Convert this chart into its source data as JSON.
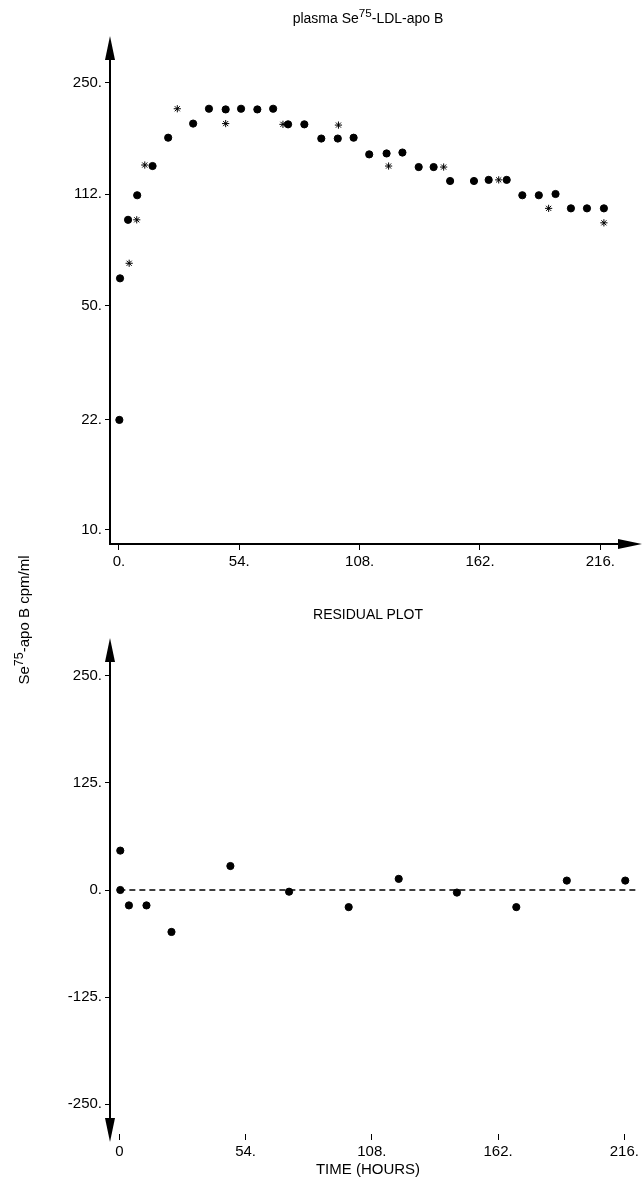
{
  "chart_data": [
    {
      "type": "scatter",
      "title": "plasma Se$^{75}$-LDL-apo B",
      "ylabel": "Se$^{75}$-apo B cpm/ml",
      "log": "y",
      "grid": false,
      "legend": false,
      "xlim": [
        -4,
        232
      ],
      "xticks": [
        {
          "value": 0,
          "label": "0."
        },
        {
          "value": 54,
          "label": "54."
        },
        {
          "value": 108,
          "label": "108."
        },
        {
          "value": 162,
          "label": "162."
        },
        {
          "value": 216,
          "label": "216."
        }
      ],
      "ylim": [
        9,
        330
      ],
      "yticks": [
        {
          "value": 10,
          "label": "10."
        },
        {
          "value": 22,
          "label": "22."
        },
        {
          "value": 50,
          "label": "50."
        },
        {
          "value": 112,
          "label": "112."
        },
        {
          "value": 250,
          "label": "250."
        }
      ],
      "series": [
        {
          "color": "#000000",
          "marker": "circle",
          "x": [
            0.2,
            0.5,
            4.1,
            8.2,
            15.1,
            22.1,
            33.3,
            40.4,
            47.9,
            54.8,
            62.1,
            69.2,
            75.9,
            83.2,
            90.8,
            98.2,
            105.3,
            112.3,
            120.1,
            127.2,
            134.5,
            141.2,
            148.6,
            159.3,
            165.9,
            174,
            181,
            188.4,
            195.9,
            202.8,
            210,
            217.6
          ],
          "values": [
            22,
            61,
            93,
            111,
            137,
            168,
            186,
            207,
            206,
            207,
            206,
            207,
            185,
            185,
            167,
            167,
            168,
            149,
            150,
            151,
            136,
            136,
            123,
            123,
            124,
            124,
            111,
            111,
            112,
            101,
            101,
            101
          ]
        },
        {
          "color": "#000000",
          "marker": "cross",
          "x": [
            4.6,
            8,
            11.6,
            26.2,
            47.9,
            73.6,
            98.5,
            121,
            145.7,
            170.4,
            192.8,
            217.6
          ],
          "values": [
            68,
            93,
            138,
            207,
            186,
            185,
            184,
            137,
            136,
            124,
            101,
            91
          ]
        }
      ]
    },
    {
      "type": "scatter",
      "title": "RESIDUAL PLOT",
      "xlabel": "TIME (HOURS)",
      "grid": false,
      "legend": false,
      "marker": "circle",
      "xlim": [
        -4,
        221
      ],
      "xticks": [
        {
          "value": 0,
          "label": "0"
        },
        {
          "value": 54,
          "label": "54."
        },
        {
          "value": 108,
          "label": "108."
        },
        {
          "value": 162,
          "label": "162."
        },
        {
          "value": 216,
          "label": "216."
        }
      ],
      "ylim": [
        -285,
        285
      ],
      "yticks": [
        {
          "value": -250,
          "label": "-250."
        },
        {
          "value": -125,
          "label": "-125."
        },
        {
          "value": 0,
          "label": "0."
        },
        {
          "value": 125,
          "label": "125."
        },
        {
          "value": 250,
          "label": "250."
        }
      ],
      "ref_lines": [
        {
          "axis": "y",
          "value": 0,
          "line_style": "dashed",
          "color": "#000000"
        }
      ],
      "series": [
        {
          "color": "#000000",
          "x": [
            0.4,
            0.4,
            4.1,
            11.6,
            22.3,
            47.5,
            72.6,
            98.1,
            119.5,
            144.4,
            169.8,
            191.4,
            216.4
          ],
          "values": [
            46,
            0,
            -18,
            -18,
            -49,
            28,
            -2,
            -20,
            13,
            -3,
            -20,
            11,
            11
          ]
        }
      ]
    }
  ]
}
